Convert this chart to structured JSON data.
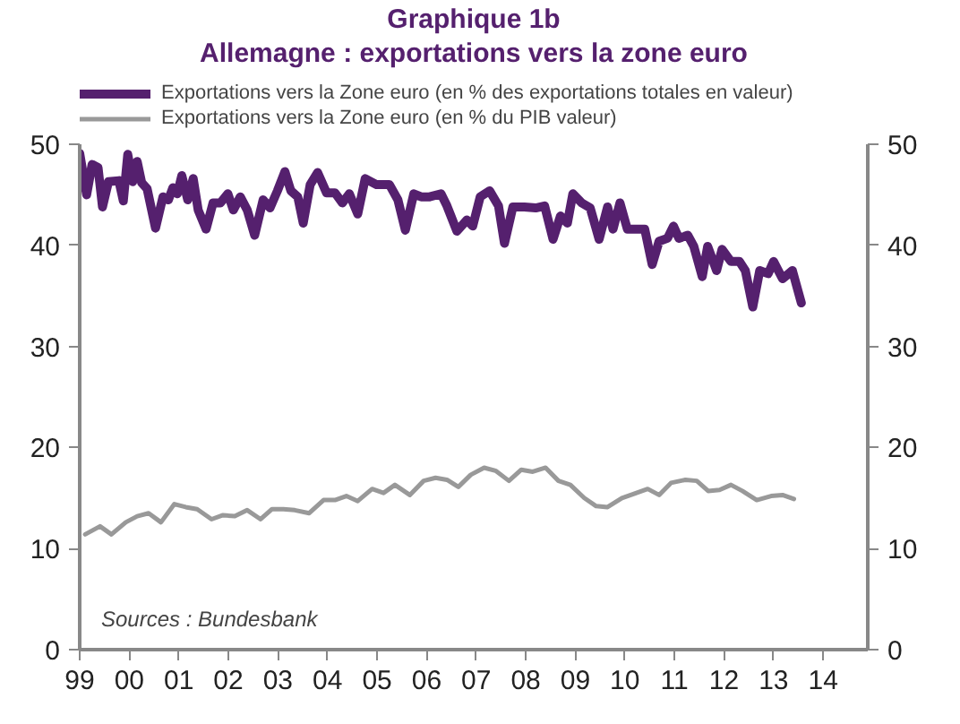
{
  "chart_data": {
    "type": "line",
    "title": "Graphique 1b",
    "subtitle": "Allemagne : exportations vers la zone euro",
    "series": [
      {
        "name": "Exportations vers la Zone euro (en % des exportations totales en valeur)",
        "color": "#55206e",
        "x": [
          1999.0,
          1999.14,
          1999.25,
          1999.37,
          1999.46,
          1999.58,
          1999.79,
          1999.88,
          1999.97,
          2000.07,
          2000.16,
          2000.25,
          2000.36,
          2000.53,
          2000.68,
          2000.79,
          2000.88,
          2000.97,
          2001.06,
          2001.18,
          2001.29,
          2001.39,
          2001.55,
          2001.69,
          2001.84,
          2001.99,
          2002.1,
          2002.24,
          2002.38,
          2002.53,
          2002.7,
          2002.84,
          2002.99,
          2003.14,
          2003.26,
          2003.4,
          2003.51,
          2003.65,
          2003.8,
          2003.98,
          2004.15,
          2004.3,
          2004.44,
          2004.61,
          2004.76,
          2004.99,
          2005.25,
          2005.42,
          2005.57,
          2005.74,
          2005.89,
          2006.06,
          2006.29,
          2006.41,
          2006.61,
          2006.81,
          2006.93,
          2007.08,
          2007.27,
          2007.45,
          2007.57,
          2007.74,
          2007.97,
          2008.2,
          2008.38,
          2008.55,
          2008.7,
          2008.84,
          2008.95,
          2009.13,
          2009.3,
          2009.48,
          2009.65,
          2009.76,
          2009.9,
          2010.05,
          2010.23,
          2010.4,
          2010.55,
          2010.69,
          2010.86,
          2010.98,
          2011.09,
          2011.27,
          2011.39,
          2011.56,
          2011.67,
          2011.85,
          2011.96,
          2012.14,
          2012.31,
          2012.43,
          2012.58,
          2012.72,
          2012.89,
          2013.0,
          2013.18,
          2013.38,
          2013.56
        ],
        "values": [
          49.1,
          45.0,
          48.0,
          47.7,
          43.8,
          46.3,
          46.4,
          44.4,
          49.0,
          46.3,
          48.3,
          46.2,
          45.6,
          41.7,
          44.8,
          44.5,
          45.7,
          45.1,
          46.9,
          44.5,
          46.6,
          43.5,
          41.6,
          44.2,
          44.2,
          45.1,
          43.5,
          44.8,
          43.5,
          41.0,
          44.5,
          43.7,
          45.4,
          47.3,
          45.4,
          44.8,
          42.2,
          46.0,
          47.2,
          45.2,
          45.2,
          44.2,
          45.1,
          43.1,
          46.6,
          46.0,
          46.0,
          44.5,
          41.5,
          45.1,
          44.8,
          44.8,
          45.1,
          43.9,
          41.4,
          42.5,
          41.9,
          44.8,
          45.4,
          43.9,
          40.2,
          43.8,
          43.8,
          43.7,
          43.9,
          40.6,
          42.9,
          42.2,
          45.1,
          44.2,
          43.7,
          40.6,
          43.8,
          41.6,
          44.2,
          41.6,
          41.6,
          41.6,
          38.1,
          40.4,
          40.7,
          41.9,
          40.7,
          41.0,
          39.9,
          36.9,
          39.9,
          37.5,
          39.6,
          38.4,
          38.4,
          37.5,
          33.9,
          37.5,
          37.2,
          38.4,
          36.7,
          37.5,
          34.3
        ]
      },
      {
        "name": "Exportations vers la Zone euro (en % du PIB valeur)",
        "color": "#999999",
        "x": [
          1999.11,
          1999.41,
          1999.64,
          1999.93,
          2000.16,
          2000.39,
          2000.64,
          2000.91,
          2001.14,
          2001.37,
          2001.66,
          2001.89,
          2002.13,
          2002.38,
          2002.65,
          2002.88,
          2003.11,
          2003.34,
          2003.63,
          2003.92,
          2004.15,
          2004.38,
          2004.61,
          2004.9,
          2005.13,
          2005.36,
          2005.66,
          2005.94,
          2006.18,
          2006.41,
          2006.64,
          2006.89,
          2007.16,
          2007.39,
          2007.66,
          2007.91,
          2008.14,
          2008.4,
          2008.66,
          2008.9,
          2009.18,
          2009.42,
          2009.65,
          2009.94,
          2010.17,
          2010.46,
          2010.69,
          2010.93,
          2011.22,
          2011.45,
          2011.68,
          2011.91,
          2012.14,
          2012.37,
          2012.66,
          2012.95,
          2013.18,
          2013.41
        ],
        "values": [
          11.4,
          12.2,
          11.4,
          12.6,
          13.2,
          13.5,
          12.6,
          14.4,
          14.1,
          13.9,
          12.9,
          13.3,
          13.2,
          13.8,
          12.9,
          13.9,
          13.9,
          13.8,
          13.5,
          14.8,
          14.8,
          15.2,
          14.7,
          15.9,
          15.5,
          16.3,
          15.3,
          16.7,
          17.0,
          16.8,
          16.1,
          17.3,
          18.0,
          17.7,
          16.7,
          17.8,
          17.6,
          18.0,
          16.7,
          16.3,
          15.0,
          14.2,
          14.1,
          15.0,
          15.4,
          15.9,
          15.3,
          16.5,
          16.8,
          16.7,
          15.7,
          15.8,
          16.3,
          15.7,
          14.8,
          15.2,
          15.3,
          14.9
        ]
      }
    ],
    "xlim": [
      1999,
      2014.9
    ],
    "xticks": [
      {
        "value": 1999,
        "label": "99"
      },
      {
        "value": 2000,
        "label": "00"
      },
      {
        "value": 2001,
        "label": "01"
      },
      {
        "value": 2002,
        "label": "02"
      },
      {
        "value": 2003,
        "label": "03"
      },
      {
        "value": 2004,
        "label": "04"
      },
      {
        "value": 2005,
        "label": "05"
      },
      {
        "value": 2006,
        "label": "06"
      },
      {
        "value": 2007,
        "label": "07"
      },
      {
        "value": 2008,
        "label": "08"
      },
      {
        "value": 2009,
        "label": "09"
      },
      {
        "value": 2010,
        "label": "10"
      },
      {
        "value": 2011,
        "label": "11"
      },
      {
        "value": 2012,
        "label": "12"
      },
      {
        "value": 2013,
        "label": "13"
      },
      {
        "value": 2014,
        "label": "14"
      }
    ],
    "ylim": [
      0,
      50
    ],
    "yticks": [
      0,
      10,
      20,
      30,
      40,
      50
    ],
    "y2lim": [
      0,
      50
    ],
    "y2ticks": [
      0,
      10,
      20,
      30,
      40,
      50
    ],
    "annotations": [
      "Sources : Bundesbank"
    ],
    "legend": "top",
    "grid": false
  }
}
